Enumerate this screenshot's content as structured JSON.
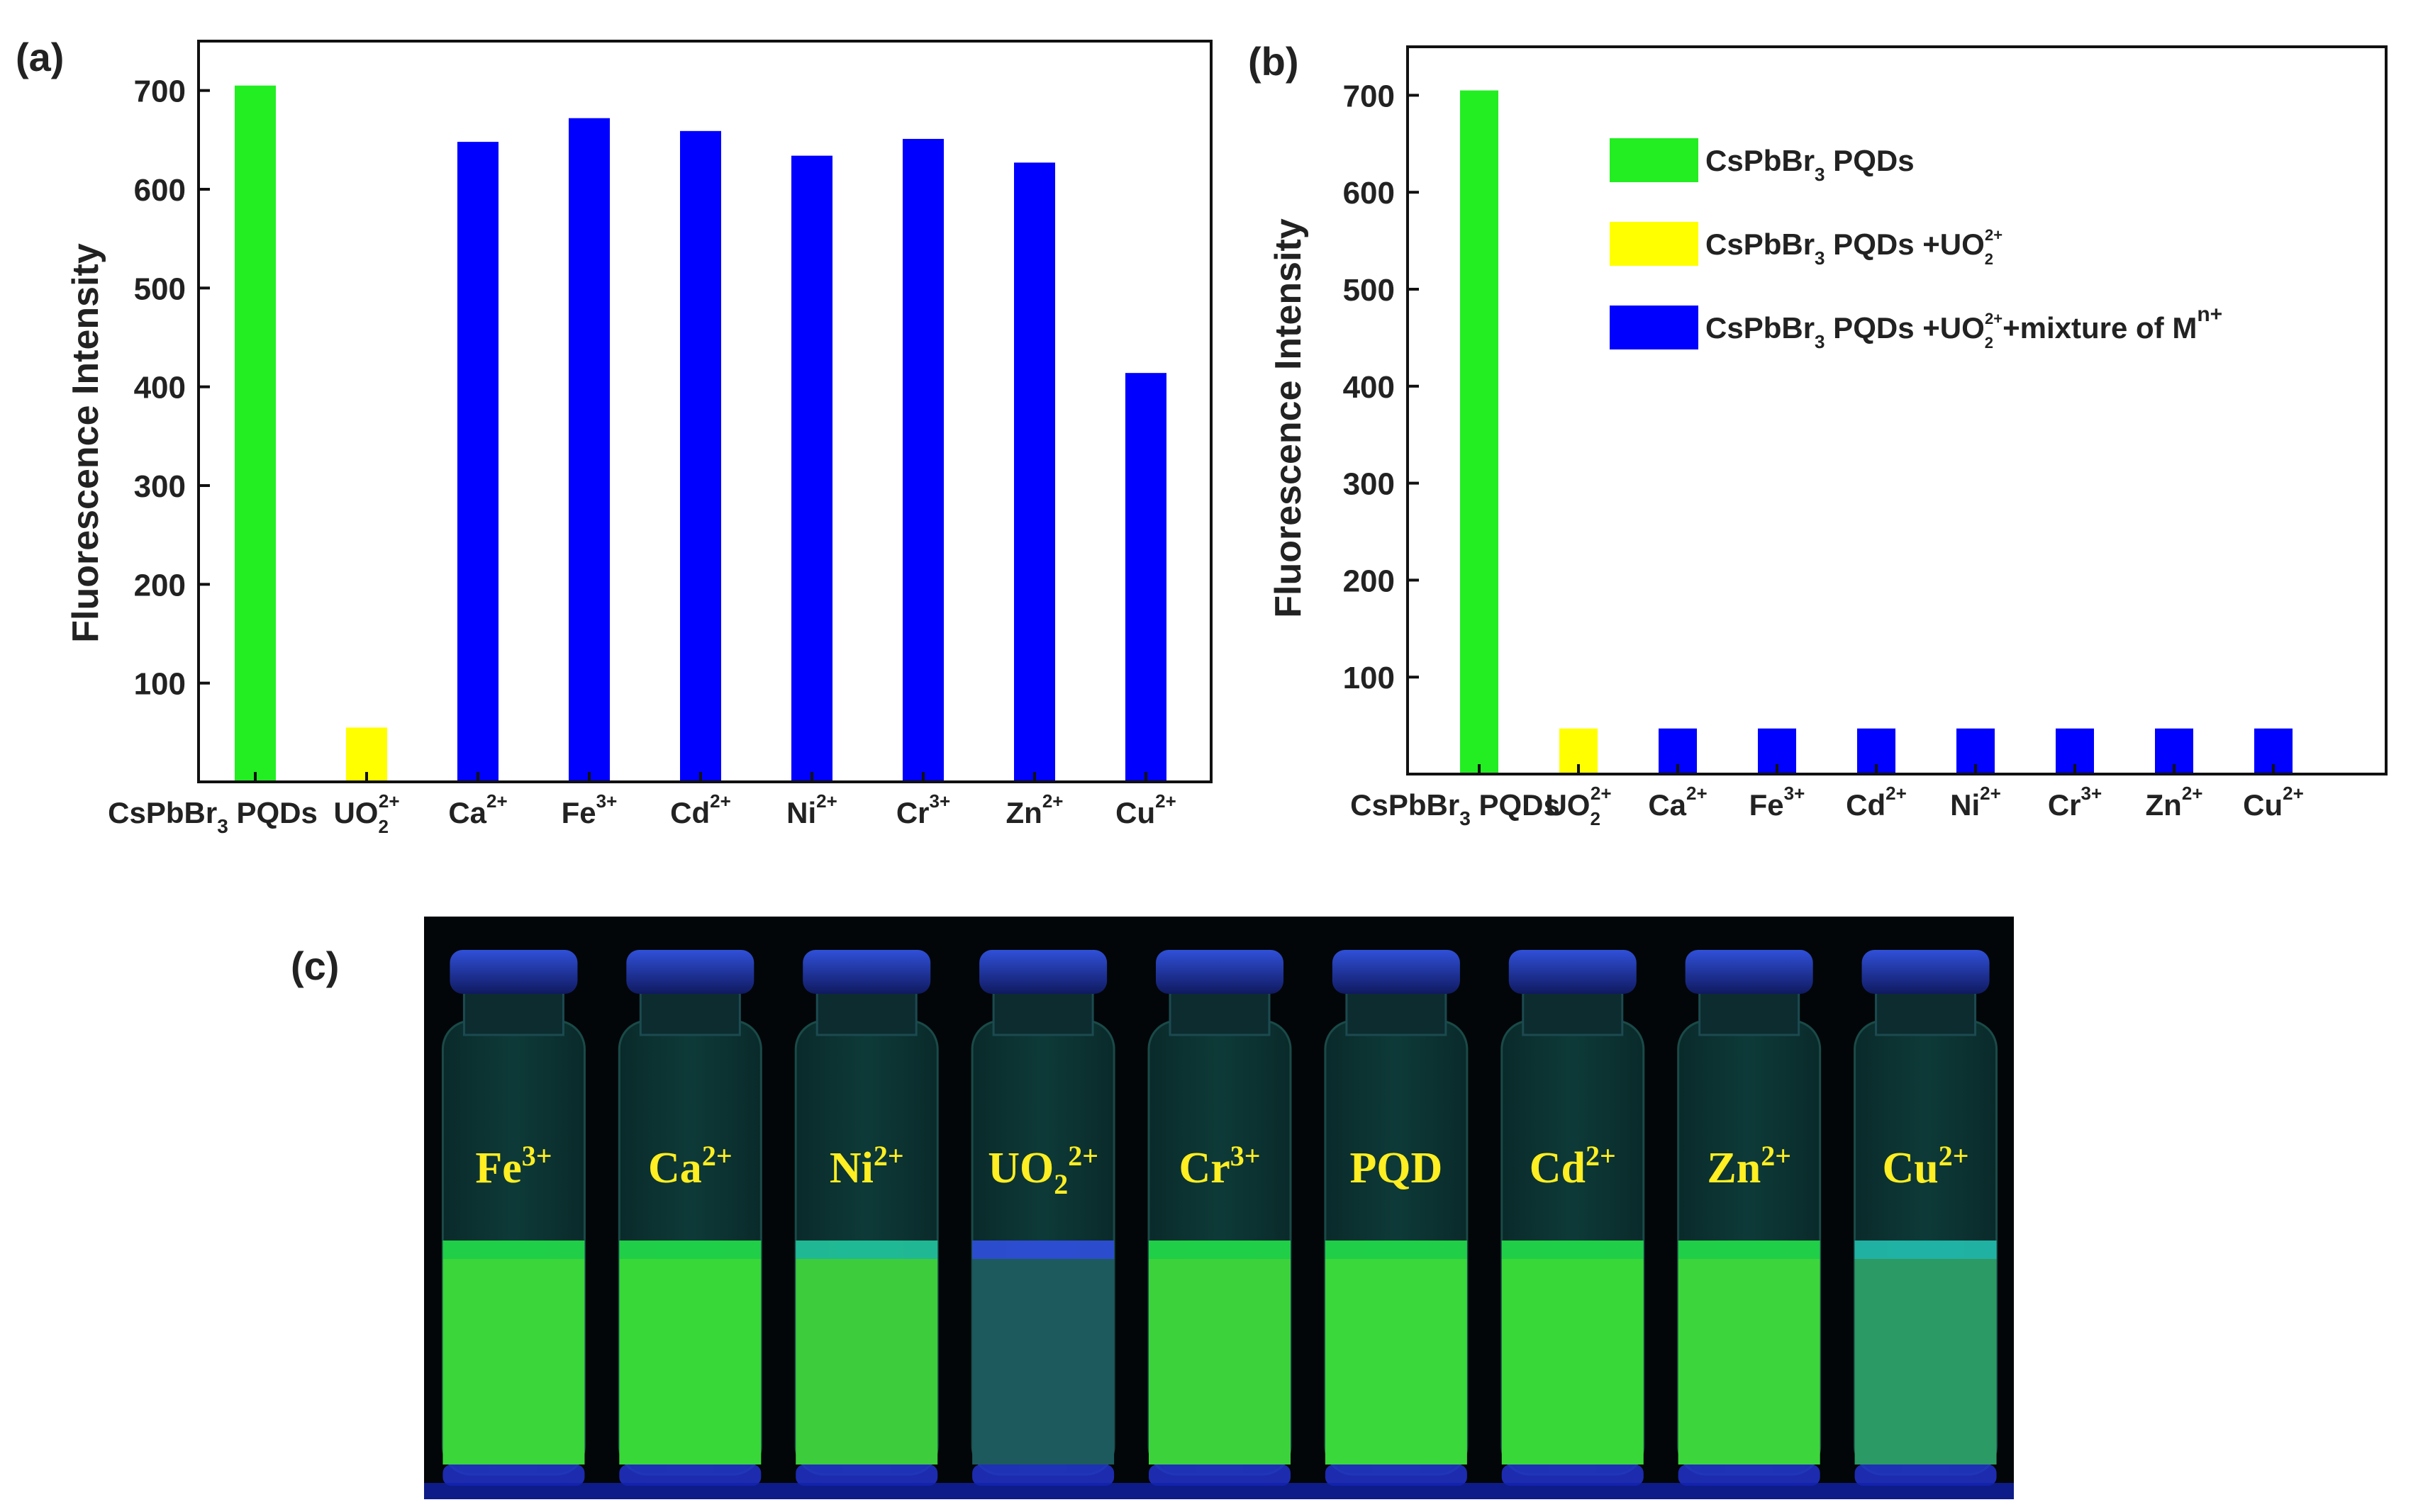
{
  "chart_data": [
    {
      "panel": "(a)",
      "type": "bar",
      "ylabel": "Fluorescence Intensity",
      "xlabel": "",
      "ylim": [
        0,
        750
      ],
      "yticks": [
        100,
        200,
        300,
        400,
        500,
        600,
        700
      ],
      "categories": [
        {
          "base": "CsPbBr",
          "sub": "3",
          "tail": " PQDs",
          "sup": ""
        },
        {
          "base": "UO",
          "sub": "2",
          "tail": "",
          "sup": "2+"
        },
        {
          "base": "Ca",
          "sub": "",
          "tail": "",
          "sup": "2+"
        },
        {
          "base": "Fe",
          "sub": "",
          "tail": "",
          "sup": "3+"
        },
        {
          "base": "Cd",
          "sub": "",
          "tail": "",
          "sup": "2+"
        },
        {
          "base": "Ni",
          "sub": "",
          "tail": "",
          "sup": "2+"
        },
        {
          "base": "Cr",
          "sub": "",
          "tail": "",
          "sup": "3+"
        },
        {
          "base": "Zn",
          "sub": "",
          "tail": "",
          "sup": "2+"
        },
        {
          "base": "Cu",
          "sub": "",
          "tail": "",
          "sup": "2+"
        }
      ],
      "values": [
        705,
        55,
        648,
        672,
        659,
        634,
        651,
        627,
        414
      ],
      "bar_colors": [
        "#22ee22",
        "#ffff00",
        "#0000ff",
        "#0000ff",
        "#0000ff",
        "#0000ff",
        "#0000ff",
        "#0000ff",
        "#0000ff"
      ]
    },
    {
      "panel": "(b)",
      "type": "bar",
      "ylabel": "Fluorescence Intensity",
      "xlabel": "",
      "ylim": [
        0,
        750
      ],
      "yticks": [
        100,
        200,
        300,
        400,
        500,
        600,
        700
      ],
      "categories": [
        {
          "base": "CsPbBr",
          "sub": "3",
          "tail": " PQDs",
          "sup": ""
        },
        {
          "base": "UO",
          "sub": "2",
          "tail": "",
          "sup": "2+"
        },
        {
          "base": "Ca",
          "sub": "",
          "tail": "",
          "sup": "2+"
        },
        {
          "base": "Fe",
          "sub": "",
          "tail": "",
          "sup": "3+"
        },
        {
          "base": "Cd",
          "sub": "",
          "tail": "",
          "sup": "2+"
        },
        {
          "base": "Ni",
          "sub": "",
          "tail": "",
          "sup": "2+"
        },
        {
          "base": "Cr",
          "sub": "",
          "tail": "",
          "sup": "3+"
        },
        {
          "base": "Zn",
          "sub": "",
          "tail": "",
          "sup": "2+"
        },
        {
          "base": "Cu",
          "sub": "",
          "tail": "",
          "sup": "2+"
        }
      ],
      "values": [
        705,
        47,
        47,
        47,
        47,
        47,
        47,
        47,
        47
      ],
      "bar_colors": [
        "#22ee22",
        "#ffff00",
        "#0000ff",
        "#0000ff",
        "#0000ff",
        "#0000ff",
        "#0000ff",
        "#0000ff",
        "#0000ff"
      ],
      "legend": [
        {
          "color": "#22ee22",
          "parts": [
            "CsPbBr",
            "3",
            " PQDs"
          ]
        },
        {
          "color": "#ffff00",
          "parts": [
            "CsPbBr",
            "3",
            " PQDs +UO",
            "2",
            "2+"
          ]
        },
        {
          "color": "#0000ff",
          "parts": [
            "CsPbBr",
            "3",
            " PQDs +UO",
            "2",
            "2+",
            "+mixture of M",
            "n+"
          ]
        }
      ]
    }
  ],
  "photo": {
    "panel": "(c)",
    "vials": [
      {
        "base": "Fe",
        "sub": "",
        "sup": "3+",
        "liquid": "#3ad63a",
        "glow": "#22e04a"
      },
      {
        "base": "Ca",
        "sub": "",
        "sup": "2+",
        "liquid": "#38d838",
        "glow": "#22e04a"
      },
      {
        "base": "Ni",
        "sub": "",
        "sup": "2+",
        "liquid": "#3ccc3c",
        "glow": "#22c8a0"
      },
      {
        "base": "UO",
        "sub": "2",
        "sup": "2+",
        "liquid": "#1d5a5e",
        "glow": "#3050e0"
      },
      {
        "base": "Cr",
        "sub": "",
        "sup": "3+",
        "liquid": "#3cd23c",
        "glow": "#22e04a"
      },
      {
        "base": "PQD",
        "sub": "",
        "sup": "",
        "liquid": "#3ad83a",
        "glow": "#22e04a"
      },
      {
        "base": "Cd",
        "sub": "",
        "sup": "2+",
        "liquid": "#38d838",
        "glow": "#22e04a"
      },
      {
        "base": "Zn",
        "sub": "",
        "sup": "2+",
        "liquid": "#3cd63c",
        "glow": "#22e04a"
      },
      {
        "base": "Cu",
        "sub": "",
        "sup": "2+",
        "liquid": "#2c9a64",
        "glow": "#22c0b0"
      }
    ]
  }
}
